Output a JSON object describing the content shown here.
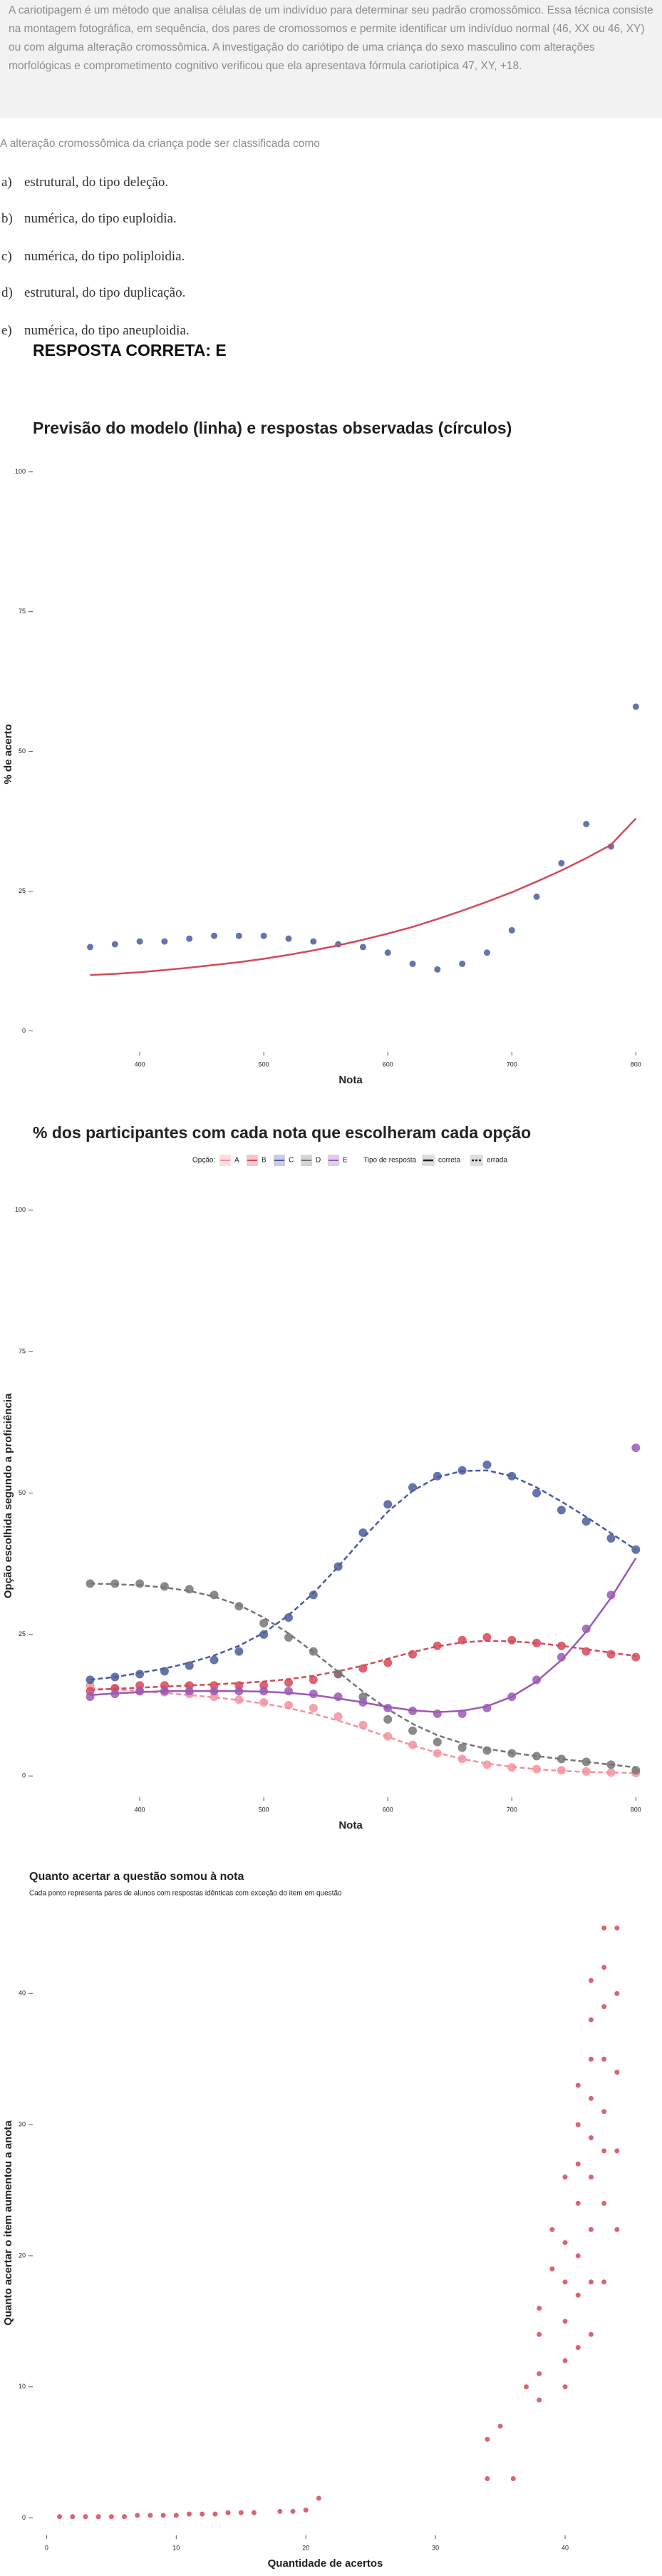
{
  "question": {
    "context": "A cariotipagem é um método que analisa células de um indivíduo para determinar seu padrão cromossômico. Essa técnica consiste na montagem fotográfica, em sequência, dos pares de cromossomos e permite identificar um indivíduo normal (46, XX ou 46, XY) ou com alguma alteração cromossômica. A investigação do cariótipo de uma criança do sexo masculino com alterações morfológicas e comprometimento cognitivo verificou que ela apresentava fórmula cariotípica 47, XY, +18.",
    "prompt": "A alteração cromossômica da criança pode ser classificada como",
    "options": [
      {
        "letter": "a)",
        "text": "estrutural, do tipo deleção."
      },
      {
        "letter": "b)",
        "text": "numérica, do tipo euploidia."
      },
      {
        "letter": "c)",
        "text": "numérica, do tipo poliploidia."
      },
      {
        "letter": "d)",
        "text": "estrutural, do tipo duplicação."
      },
      {
        "letter": "e)",
        "text": "numérica, do tipo aneuploidia."
      }
    ],
    "answer": "RESPOSTA CORRETA: E"
  },
  "chart_data": [
    {
      "type": "scatter",
      "title": "Previsão do modelo (linha) e respostas observadas (círculos)",
      "xlabel": "Nota",
      "ylabel": "% de acerto",
      "x": [
        360,
        380,
        400,
        420,
        440,
        460,
        480,
        500,
        520,
        540,
        560,
        580,
        600,
        620,
        640,
        660,
        680,
        700,
        720,
        740,
        760,
        780,
        800
      ],
      "series": [
        {
          "color": "#4a5c9c",
          "fit_color": "#d4495a",
          "line_style": "solid",
          "values": [
            15,
            15.5,
            16,
            16,
            16.5,
            17,
            17,
            17,
            16.5,
            16,
            15.5,
            15,
            14,
            12,
            11,
            12,
            14,
            18,
            24,
            30,
            37,
            33,
            58
          ],
          "fit": [
            10,
            10.2,
            10.5,
            10.9,
            11.3,
            11.8,
            12.3,
            12.9,
            13.6,
            14.4,
            15.3,
            16.3,
            17.4,
            18.6,
            20,
            21.5,
            23.1,
            24.8,
            26.7,
            28.7,
            30.9,
            33.3,
            38
          ]
        }
      ],
      "xlim": [
        335,
        805
      ],
      "ylim": [
        -3,
        102
      ],
      "xticks": [
        400,
        500,
        600,
        700,
        800
      ],
      "yticks": [
        0,
        25,
        50,
        75,
        100
      ]
    },
    {
      "type": "scatter",
      "title": "% dos participantes com cada nota que escolheram cada opção",
      "xlabel": "Nota",
      "ylabel": "Opção escolhida segundo a proficiência",
      "legend_title": "Opção:",
      "style_legend_title": "Tipo de resposta",
      "style_names": [
        "correta",
        "errada"
      ],
      "x": [
        360,
        380,
        400,
        420,
        440,
        460,
        480,
        500,
        520,
        540,
        560,
        580,
        600,
        620,
        640,
        660,
        680,
        700,
        720,
        740,
        760,
        780,
        800
      ],
      "series": [
        {
          "name": "A",
          "color": "#f4929e",
          "fit_color": "#f4929e",
          "line_style": "dashed",
          "values": [
            16,
            15.5,
            15,
            14.8,
            14.5,
            14,
            13.5,
            13,
            12.5,
            12,
            10.5,
            9,
            7,
            5.5,
            4,
            3,
            2,
            1.5,
            1.2,
            1,
            0.8,
            0.6,
            0.5
          ],
          "fit": [
            15.5,
            15.3,
            15,
            14.7,
            14.3,
            13.9,
            13.4,
            12.8,
            12,
            11,
            9.8,
            8.4,
            6.9,
            5.4,
            4.1,
            3,
            2.2,
            1.6,
            1.2,
            0.9,
            0.7,
            0.6,
            0.5
          ]
        },
        {
          "name": "B",
          "color": "#d4495a",
          "fit_color": "#d4495a",
          "line_style": "dashed",
          "values": [
            15,
            15.5,
            16,
            16,
            16,
            16,
            16,
            16,
            16.5,
            17,
            18,
            19,
            20,
            21.5,
            23,
            24,
            24.5,
            24,
            23.5,
            23,
            22,
            21.5,
            21
          ],
          "fit": [
            15.2,
            15.4,
            15.6,
            15.8,
            16,
            16.2,
            16.4,
            16.7,
            17.1,
            17.7,
            18.5,
            19.5,
            20.7,
            21.9,
            22.9,
            23.6,
            23.9,
            23.8,
            23.5,
            23,
            22.4,
            21.8,
            21.2
          ]
        },
        {
          "name": "C",
          "color": "#4a5c9c",
          "fit_color": "#4a5c9c",
          "line_style": "dashed",
          "values": [
            17,
            17.5,
            18,
            18.5,
            19.5,
            20.5,
            22,
            25,
            28,
            32,
            37,
            43,
            48,
            51,
            53,
            54,
            55,
            53,
            50,
            47,
            45,
            42,
            40
          ],
          "fit": [
            17,
            17.5,
            18.2,
            19,
            20,
            21.3,
            23,
            25.3,
            28.4,
            32.3,
            37,
            42,
            46.7,
            50.4,
            52.8,
            53.9,
            54,
            53,
            51,
            48.5,
            45.8,
            42.9,
            40
          ]
        },
        {
          "name": "D",
          "color": "#757575",
          "fit_color": "#757575",
          "line_style": "dashed",
          "values": [
            34,
            34,
            34,
            33.5,
            33,
            32,
            30,
            27,
            24.5,
            22,
            18,
            14,
            10,
            8,
            6,
            5,
            4.5,
            4,
            3.5,
            3,
            2.5,
            2,
            1
          ],
          "fit": [
            34,
            33.9,
            33.7,
            33.3,
            32.7,
            31.7,
            30.2,
            28,
            25.2,
            21.9,
            18.4,
            14.9,
            11.8,
            9.2,
            7.2,
            5.8,
            4.8,
            4.1,
            3.5,
            3,
            2.5,
            2,
            1.5
          ]
        },
        {
          "name": "E",
          "color": "#9b59b6",
          "fit_color": "#9b59b6",
          "line_style": "solid",
          "values": [
            14,
            14.5,
            15,
            15,
            15,
            15,
            15,
            15,
            15,
            14.5,
            14,
            13,
            12,
            11.5,
            11,
            11,
            12,
            14,
            17,
            21,
            26,
            32,
            58
          ],
          "fit": [
            14.3,
            14.6,
            14.8,
            15,
            15,
            15,
            15,
            14.9,
            14.7,
            14.3,
            13.7,
            13,
            12.2,
            11.6,
            11.3,
            11.5,
            12.3,
            14,
            16.7,
            20.5,
            25.5,
            31.5,
            38.5
          ]
        }
      ],
      "xlim": [
        335,
        805
      ],
      "ylim": [
        -3,
        102
      ],
      "xticks": [
        400,
        500,
        600,
        700,
        800
      ],
      "yticks": [
        0,
        25,
        50,
        75,
        100
      ]
    },
    {
      "type": "scatter",
      "title": "Quanto acertar a questão somou à nota",
      "subtitle": "Cada ponto representa pares de alunos com respostas idênticas com exceção do item em questão",
      "xlabel": "Quantidade de acertos",
      "ylabel": "Quanto acertar o item aumentou a anota",
      "x": [
        1,
        2,
        3,
        4,
        5,
        6,
        7,
        8,
        9,
        10,
        11,
        12,
        13,
        14,
        15,
        16,
        18,
        19,
        20,
        21,
        34,
        34,
        35,
        36,
        37,
        38,
        38,
        38,
        38,
        39,
        39,
        40,
        40,
        40,
        40,
        40,
        40,
        41,
        41,
        41,
        41,
        41,
        41,
        41,
        42,
        42,
        42,
        42,
        42,
        42,
        42,
        42,
        42,
        43,
        43,
        43,
        43,
        43,
        43,
        43,
        43,
        44,
        44,
        44,
        44,
        44
      ],
      "series": [
        {
          "color": "#d4495a",
          "values": [
            0.1,
            0.1,
            0.1,
            0.1,
            0.1,
            0.1,
            0.2,
            0.2,
            0.2,
            0.2,
            0.3,
            0.3,
            0.3,
            0.4,
            0.4,
            0.4,
            0.5,
            0.5,
            0.6,
            1.5,
            3,
            6,
            7,
            3,
            10,
            9,
            11,
            14,
            16,
            19,
            22,
            10,
            12,
            15,
            18,
            21,
            26,
            13,
            17,
            20,
            24,
            27,
            30,
            33,
            14,
            18,
            22,
            26,
            29,
            32,
            35,
            38,
            41,
            18,
            24,
            28,
            31,
            35,
            39,
            42,
            45,
            22,
            28,
            34,
            40,
            45
          ]
        }
      ],
      "xlim": [
        -2,
        45
      ],
      "ylim": [
        -1,
        46
      ],
      "xticks": [
        0,
        10,
        20,
        30,
        40
      ],
      "yticks": [
        0,
        10,
        20,
        30,
        40
      ]
    }
  ]
}
